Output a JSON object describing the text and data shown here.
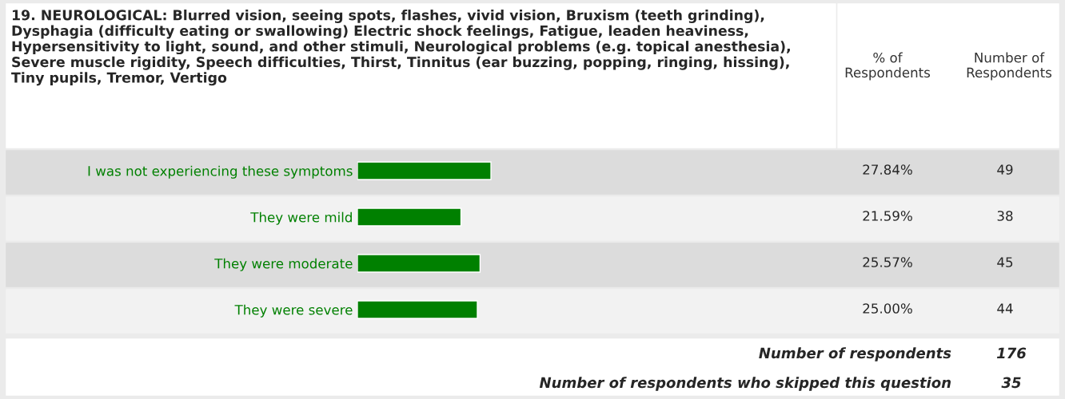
{
  "chart_data": {
    "type": "bar",
    "orientation": "horizontal",
    "title": "19. NEUROLOGICAL: Blurred vision, seeing spots, flashes, vivid vision, Bruxism (teeth grinding), Dysphagia (difficulty eating or swallowing) Electric shock feelings, Fatigue, leaden heaviness, Hypersensitivity to light, sound, and other stimuli, Neurological problems (e.g. topical anesthesia), Severe muscle rigidity, Speech difficulties, Thirst, Tinnitus (ear buzzing, popping, ringing, hissing), Tiny pupils, Tremor, Vertigo",
    "categories": [
      "I was not experiencing these symptoms",
      "They were mild",
      "They were moderate",
      "They were severe"
    ],
    "values": [
      27.84,
      21.59,
      25.57,
      25.0
    ],
    "value_labels": [
      "27.84%",
      "21.59%",
      "25.57%",
      "25.00%"
    ],
    "color": "#008000",
    "tick_labels": "y",
    "annotations": [
      "% of Respondents",
      "Number of Respondents",
      "49",
      "38",
      "45",
      "44",
      "Number of respondents",
      "176",
      "Number of respondents who skipped this question",
      "35"
    ]
  }
}
